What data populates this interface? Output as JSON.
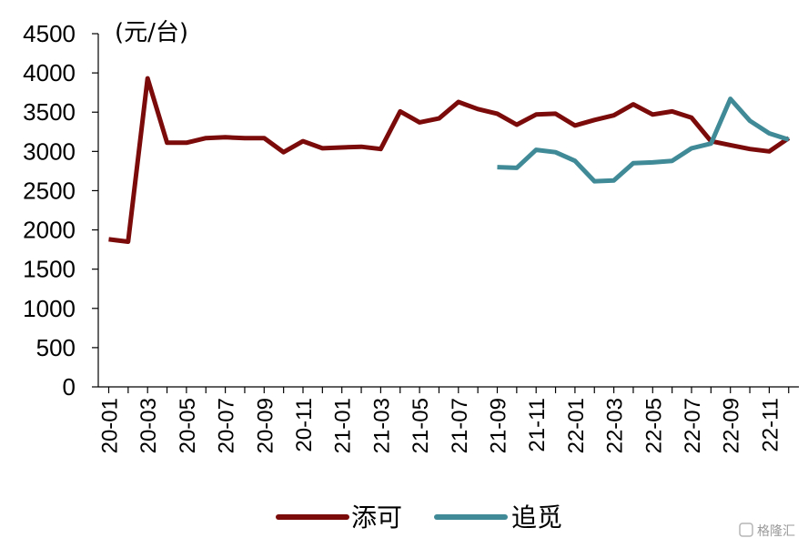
{
  "chart_data": {
    "type": "line",
    "ylabel": "(元/台)",
    "ylim": [
      0,
      4500
    ],
    "yticks": [
      0,
      500,
      1000,
      1500,
      2000,
      2500,
      3000,
      3500,
      4000,
      4500
    ],
    "x": [
      "20-01",
      "20-02",
      "20-03",
      "20-04",
      "20-05",
      "20-06",
      "20-07",
      "20-08",
      "20-09",
      "20-10",
      "20-11",
      "20-12",
      "21-01",
      "21-02",
      "21-03",
      "21-04",
      "21-05",
      "21-06",
      "21-07",
      "21-08",
      "21-09",
      "21-10",
      "21-11",
      "21-12",
      "22-01",
      "22-02",
      "22-03",
      "22-04",
      "22-05",
      "22-06",
      "22-07",
      "22-08",
      "22-09",
      "22-10",
      "22-11",
      "22-12"
    ],
    "xtick_labels": [
      "20-01",
      "20-03",
      "20-05",
      "20-07",
      "20-09",
      "20-11",
      "21-01",
      "21-03",
      "21-05",
      "21-07",
      "21-09",
      "21-11",
      "22-01",
      "22-03",
      "22-05",
      "22-07",
      "22-09",
      "22-11"
    ],
    "series": [
      {
        "name": "添可",
        "color": "#7b0a0a",
        "values": [
          1880,
          1850,
          3930,
          3110,
          3110,
          3170,
          3180,
          3170,
          3170,
          2990,
          3130,
          3040,
          3050,
          3060,
          3030,
          3510,
          3370,
          3420,
          3630,
          3540,
          3480,
          3340,
          3470,
          3480,
          3330,
          3400,
          3460,
          3600,
          3470,
          3510,
          3430,
          3130,
          3080,
          3030,
          3000,
          3170
        ]
      },
      {
        "name": "追觅",
        "color": "#3f8a96",
        "values": [
          null,
          null,
          null,
          null,
          null,
          null,
          null,
          null,
          null,
          null,
          null,
          null,
          null,
          null,
          null,
          null,
          null,
          null,
          null,
          null,
          2800,
          2790,
          3020,
          2990,
          2880,
          2620,
          2630,
          2850,
          2860,
          2880,
          3040,
          3100,
          3670,
          3390,
          3230,
          3150
        ]
      }
    ],
    "grid": false,
    "legend_position": "bottom"
  },
  "watermark": "格隆汇"
}
